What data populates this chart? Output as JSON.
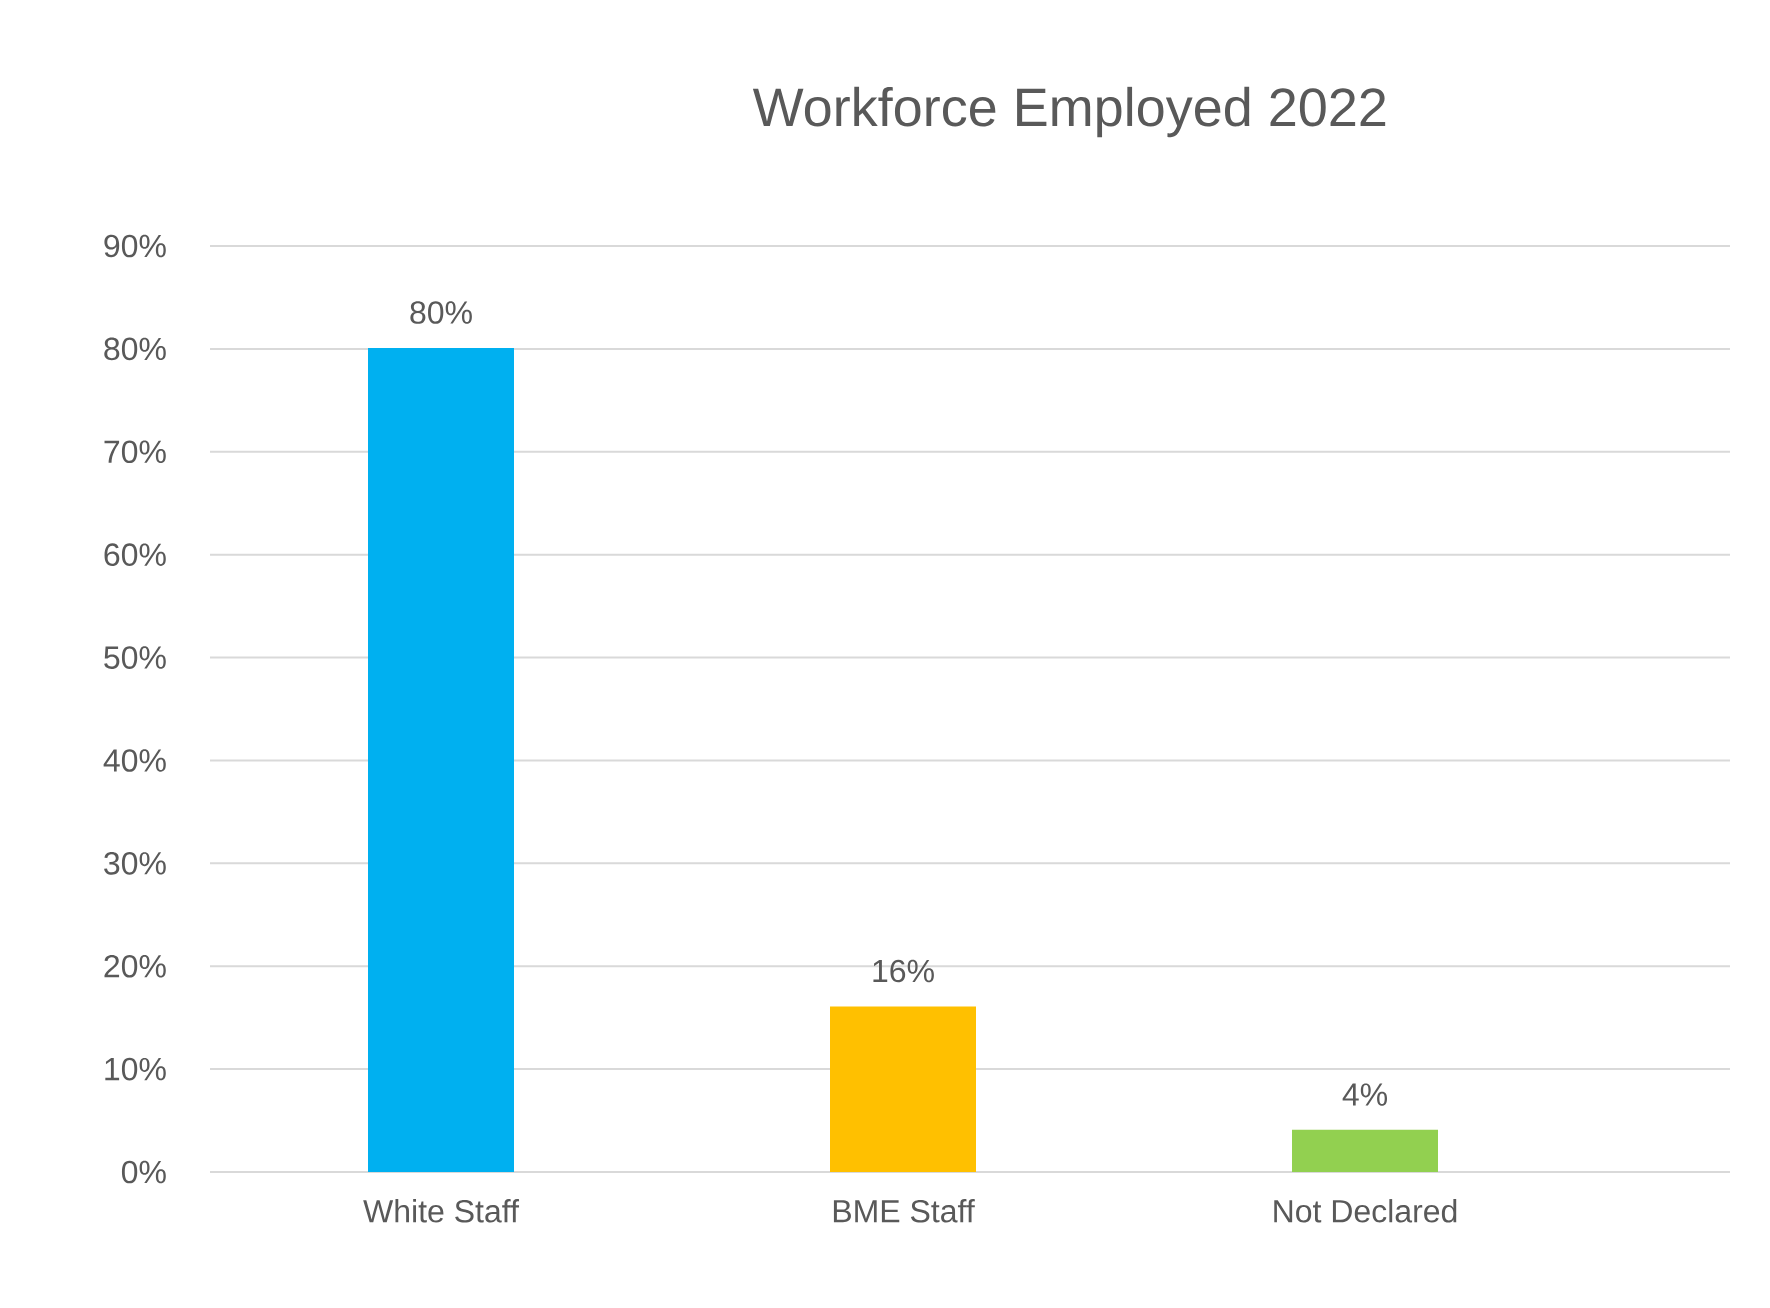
{
  "chart_data": {
    "type": "bar",
    "title": "Workforce Employed 2022",
    "categories": [
      "White Staff",
      "BME Staff",
      "Not Declared"
    ],
    "values": [
      80,
      16,
      4
    ],
    "value_labels": [
      "80%",
      "16%",
      "4%"
    ],
    "colors": [
      "#00b0f0",
      "#ffc000",
      "#92d050"
    ],
    "ylim": [
      0,
      90
    ],
    "yticks": [
      {
        "value": 0,
        "label": "0%"
      },
      {
        "value": 10,
        "label": "10%"
      },
      {
        "value": 20,
        "label": "20%"
      },
      {
        "value": 30,
        "label": "30%"
      },
      {
        "value": 40,
        "label": "40%"
      },
      {
        "value": 50,
        "label": "50%"
      },
      {
        "value": 60,
        "label": "60%"
      },
      {
        "value": 70,
        "label": "70%"
      },
      {
        "value": 80,
        "label": "80%"
      },
      {
        "value": 90,
        "label": "90%"
      }
    ],
    "grid": "y"
  }
}
